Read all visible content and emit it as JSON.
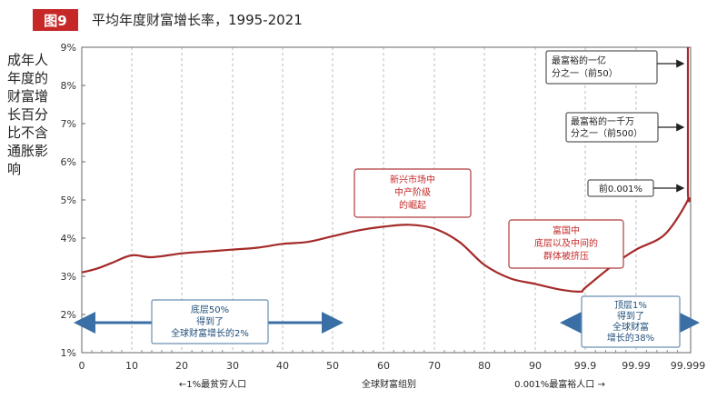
{
  "header": {
    "badge": "图9",
    "title": "平均年度财富增长率，1995-2021"
  },
  "chart_data": {
    "type": "line",
    "title": "平均年度财富增长率，1995-2021",
    "ylabel": "成年人年度的财富增长百分比不含通胀影响",
    "xlabel": "全球财富组别",
    "ylim": [
      1,
      9
    ],
    "yticks": [
      1,
      2,
      3,
      4,
      5,
      6,
      7,
      8,
      9
    ],
    "ytick_labels": [
      "1%",
      "2%",
      "3%",
      "4%",
      "5%",
      "6%",
      "7%",
      "8%",
      "9%"
    ],
    "xticks": [
      0,
      10,
      20,
      30,
      40,
      50,
      60,
      70,
      80,
      90,
      99.9,
      99.99,
      99.999
    ],
    "xtick_labels": [
      "0",
      "10",
      "20",
      "30",
      "40",
      "50",
      "60",
      "70",
      "80",
      "90",
      "99.9",
      "99.99",
      "99.999"
    ],
    "x_sub_labels": [
      "←1%最贫穷人口",
      "全球财富组别",
      "0.001%最富裕人口 →"
    ],
    "grid": "vertical-dashed",
    "series": [
      {
        "color": "#a52a2a",
        "points": [
          [
            0,
            3.1
          ],
          [
            3,
            3.2
          ],
          [
            6,
            3.35
          ],
          [
            10,
            3.55
          ],
          [
            14,
            3.5
          ],
          [
            20,
            3.6
          ],
          [
            25,
            3.65
          ],
          [
            30,
            3.7
          ],
          [
            35,
            3.75
          ],
          [
            40,
            3.85
          ],
          [
            45,
            3.9
          ],
          [
            50,
            4.05
          ],
          [
            55,
            4.2
          ],
          [
            60,
            4.3
          ],
          [
            65,
            4.35
          ],
          [
            70,
            4.25
          ],
          [
            75,
            3.9
          ],
          [
            80,
            3.3
          ],
          [
            85,
            2.95
          ],
          [
            90,
            2.8
          ],
          [
            95,
            2.65
          ],
          [
            99,
            2.6
          ],
          [
            99.9,
            2.7
          ],
          [
            99.95,
            3.3
          ],
          [
            99.99,
            3.7
          ],
          [
            99.995,
            4.1
          ],
          [
            99.999,
            5.0
          ],
          [
            99.9995,
            5.3
          ],
          [
            99.99995,
            9.0
          ]
        ]
      }
    ],
    "annotations": [
      {
        "text": [
          "新兴市场中",
          "中产阶级",
          "的崛起"
        ],
        "style": "red-box"
      },
      {
        "text": [
          "富国中",
          "底层以及中间的",
          "群体被挤压"
        ],
        "style": "red-box"
      },
      {
        "text": [
          "最富裕的一亿",
          "分之一（前50）"
        ],
        "style": "dark-box"
      },
      {
        "text": [
          "最富裕的一千万",
          "分之一（前500）"
        ],
        "style": "dark-box"
      },
      {
        "text": [
          "前0.001%"
        ],
        "style": "dark-box"
      },
      {
        "text": [
          "底层50%",
          "得到了",
          "全球财富增长的2%"
        ],
        "style": "blue-box"
      },
      {
        "text": [
          "顶层1%",
          "得到了",
          "全球财富",
          "增长的38%"
        ],
        "style": "blue-box"
      }
    ]
  }
}
